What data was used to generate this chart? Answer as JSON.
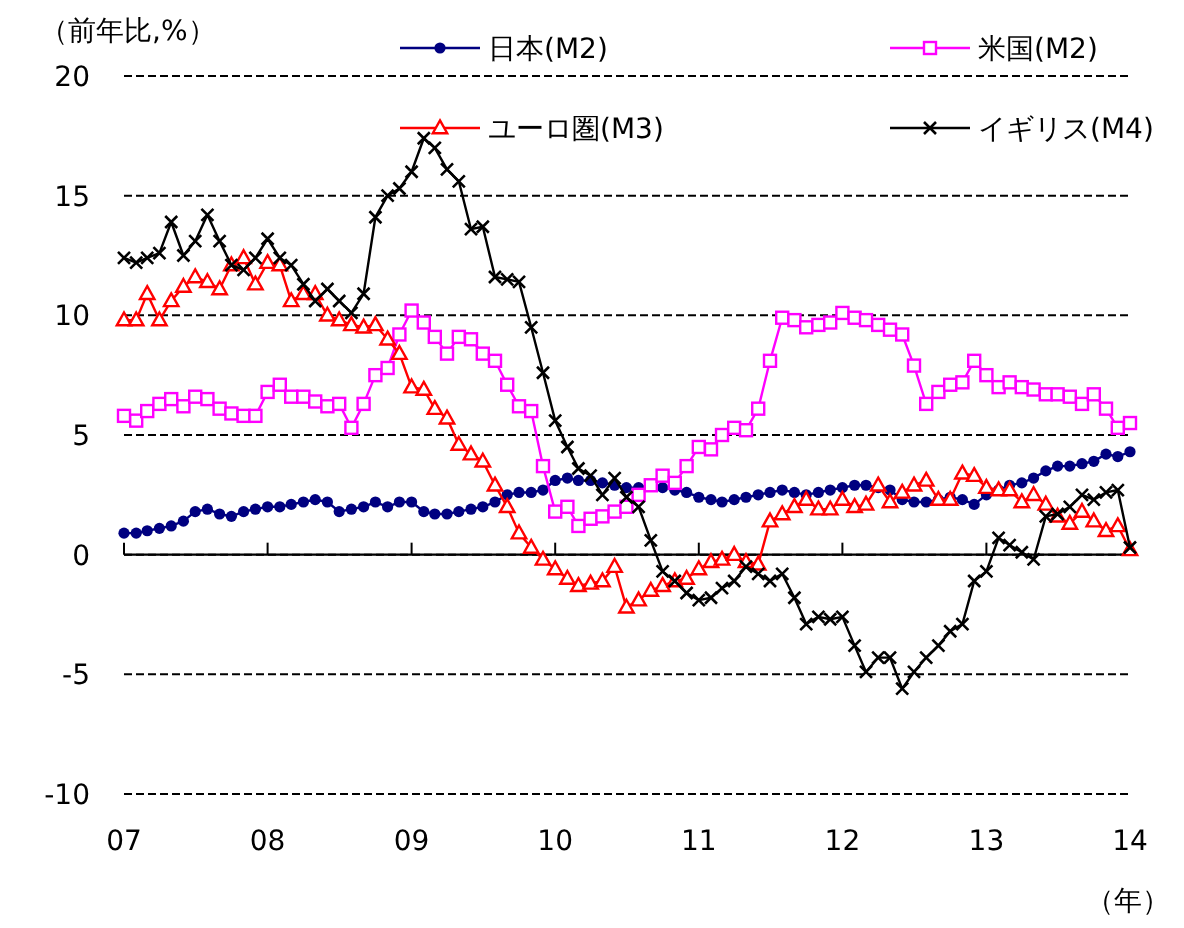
{
  "chart_data": {
    "type": "line",
    "ylabel": "（前年比,%）",
    "xlabel": "（年）",
    "x": [
      "2007-01",
      "2007-02",
      "2007-03",
      "2007-04",
      "2007-05",
      "2007-06",
      "2007-07",
      "2007-08",
      "2007-09",
      "2007-10",
      "2007-11",
      "2007-12",
      "2008-01",
      "2008-02",
      "2008-03",
      "2008-04",
      "2008-05",
      "2008-06",
      "2008-07",
      "2008-08",
      "2008-09",
      "2008-10",
      "2008-11",
      "2008-12",
      "2009-01",
      "2009-02",
      "2009-03",
      "2009-04",
      "2009-05",
      "2009-06",
      "2009-07",
      "2009-08",
      "2009-09",
      "2009-10",
      "2009-11",
      "2009-12",
      "2010-01",
      "2010-02",
      "2010-03",
      "2010-04",
      "2010-05",
      "2010-06",
      "2010-07",
      "2010-08",
      "2010-09",
      "2010-10",
      "2010-11",
      "2010-12",
      "2011-01",
      "2011-02",
      "2011-03",
      "2011-04",
      "2011-05",
      "2011-06",
      "2011-07",
      "2011-08",
      "2011-09",
      "2011-10",
      "2011-11",
      "2011-12",
      "2012-01",
      "2012-02",
      "2012-03",
      "2012-04",
      "2012-05",
      "2012-06",
      "2012-07",
      "2012-08",
      "2012-09",
      "2012-10",
      "2012-11",
      "2012-12",
      "2013-01",
      "2013-02",
      "2013-03",
      "2013-04",
      "2013-05",
      "2013-06",
      "2013-07",
      "2013-08",
      "2013-09",
      "2013-10",
      "2013-11",
      "2013-12",
      "2014-01"
    ],
    "series": [
      {
        "name": "日本(M2)",
        "color": "#000080",
        "marker": "circle",
        "values": [
          0.9,
          0.9,
          1.0,
          1.1,
          1.2,
          1.4,
          1.8,
          1.9,
          1.7,
          1.6,
          1.8,
          1.9,
          2.0,
          2.0,
          2.1,
          2.2,
          2.3,
          2.2,
          1.8,
          1.9,
          2.0,
          2.2,
          2.0,
          2.2,
          2.2,
          1.8,
          1.7,
          1.7,
          1.8,
          1.9,
          2.0,
          2.2,
          2.5,
          2.6,
          2.6,
          2.7,
          3.1,
          3.2,
          3.1,
          3.1,
          3.0,
          2.9,
          2.8,
          2.8,
          2.9,
          2.8,
          2.7,
          2.6,
          2.4,
          2.3,
          2.2,
          2.3,
          2.4,
          2.5,
          2.6,
          2.7,
          2.6,
          2.5,
          2.6,
          2.7,
          2.8,
          2.9,
          2.9,
          2.8,
          2.7,
          2.3,
          2.2,
          2.2,
          2.3,
          2.4,
          2.3,
          2.1,
          2.5,
          2.7,
          2.9,
          3.0,
          3.2,
          3.5,
          3.7,
          3.7,
          3.8,
          3.9,
          4.2,
          4.1,
          4.3
        ]
      },
      {
        "name": "米国(M2)",
        "color": "#ff00ff",
        "marker": "square",
        "values": [
          5.8,
          5.6,
          6.0,
          6.3,
          6.5,
          6.2,
          6.6,
          6.5,
          6.1,
          5.9,
          5.8,
          5.8,
          6.8,
          7.1,
          6.6,
          6.6,
          6.4,
          6.2,
          6.3,
          5.3,
          6.3,
          7.5,
          7.8,
          9.2,
          10.2,
          9.7,
          9.1,
          8.4,
          9.1,
          9.0,
          8.4,
          8.1,
          7.1,
          6.2,
          6.0,
          3.7,
          1.8,
          2.0,
          1.2,
          1.5,
          1.6,
          1.8,
          2.0,
          2.5,
          2.9,
          3.3,
          3.0,
          3.7,
          4.5,
          4.4,
          5.0,
          5.3,
          5.2,
          6.1,
          8.1,
          9.9,
          9.8,
          9.5,
          9.6,
          9.7,
          10.1,
          9.9,
          9.8,
          9.6,
          9.4,
          9.2,
          7.9,
          6.3,
          6.8,
          7.1,
          7.2,
          8.1,
          7.5,
          7.0,
          7.2,
          7.0,
          6.9,
          6.7,
          6.7,
          6.6,
          6.3,
          6.7,
          6.1,
          5.3,
          5.5
        ]
      },
      {
        "name": "ユーロ圏(M3)",
        "color": "#ff0000",
        "marker": "triangle",
        "values": [
          9.8,
          9.8,
          10.9,
          9.8,
          10.6,
          11.2,
          11.6,
          11.4,
          11.1,
          12.1,
          12.4,
          11.3,
          12.2,
          12.1,
          10.6,
          10.9,
          10.9,
          10.0,
          9.8,
          9.6,
          9.5,
          9.6,
          9.0,
          8.4,
          7.0,
          6.9,
          6.1,
          5.7,
          4.6,
          4.2,
          3.9,
          2.9,
          2.0,
          0.9,
          0.3,
          -0.2,
          -0.6,
          -1.0,
          -1.3,
          -1.2,
          -1.1,
          -0.5,
          -2.2,
          -1.9,
          -1.5,
          -1.3,
          -1.1,
          -1.0,
          -0.6,
          -0.3,
          -0.2,
          0.0,
          -0.3,
          -0.4,
          1.4,
          1.7,
          2.0,
          2.3,
          1.9,
          1.9,
          2.3,
          2.0,
          2.1,
          2.9,
          2.2,
          2.6,
          2.9,
          3.1,
          2.3,
          2.3,
          3.4,
          3.3,
          2.8,
          2.7,
          2.7,
          2.2,
          2.5,
          2.1,
          1.6,
          1.3,
          1.8,
          1.4,
          1.0,
          1.2,
          0.2
        ]
      },
      {
        "name": "イギリス(M4)",
        "color": "#000000",
        "marker": "cross",
        "values": [
          12.4,
          12.2,
          12.4,
          12.6,
          13.9,
          12.5,
          13.1,
          14.2,
          13.1,
          12.1,
          11.9,
          12.4,
          13.2,
          12.4,
          12.1,
          11.3,
          10.6,
          11.1,
          10.6,
          10.1,
          10.9,
          14.1,
          15.0,
          15.3,
          16.0,
          17.4,
          17.0,
          16.1,
          15.6,
          13.6,
          13.7,
          11.6,
          11.5,
          11.4,
          9.5,
          7.6,
          5.6,
          4.5,
          3.6,
          3.3,
          2.5,
          3.2,
          2.4,
          2.0,
          0.6,
          -0.7,
          -1.1,
          -1.6,
          -1.9,
          -1.8,
          -1.4,
          -1.1,
          -0.5,
          -0.8,
          -1.1,
          -0.8,
          -1.8,
          -2.9,
          -2.6,
          -2.7,
          -2.6,
          -3.8,
          -4.9,
          -4.3,
          -4.3,
          -5.6,
          -4.9,
          -4.3,
          -3.8,
          -3.2,
          -2.9,
          -1.1,
          -0.7,
          0.7,
          0.4,
          0.1,
          -0.2,
          1.6,
          1.7,
          2.0,
          2.5,
          2.3,
          2.6,
          2.7,
          0.3
        ]
      }
    ],
    "xlim": [
      "2007-01",
      "2014-01"
    ],
    "xticks": [
      {
        "value": "2007-01",
        "label": "07"
      },
      {
        "value": "2008-01",
        "label": "08"
      },
      {
        "value": "2009-01",
        "label": "09"
      },
      {
        "value": "2010-01",
        "label": "10"
      },
      {
        "value": "2011-01",
        "label": "11"
      },
      {
        "value": "2012-01",
        "label": "12"
      },
      {
        "value": "2013-01",
        "label": "13"
      },
      {
        "value": "2014-01",
        "label": "14"
      }
    ],
    "ylim": [
      -10,
      20
    ],
    "yticks": [
      -10,
      -5,
      0,
      5,
      10,
      15,
      20
    ],
    "grid": "y",
    "legend": "top",
    "line_style": "solid"
  }
}
